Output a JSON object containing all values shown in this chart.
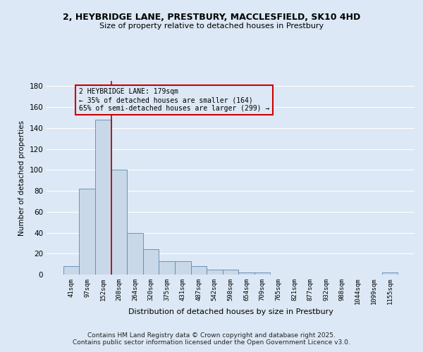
{
  "title": "2, HEYBRIDGE LANE, PRESTBURY, MACCLESFIELD, SK10 4HD",
  "subtitle": "Size of property relative to detached houses in Prestbury",
  "xlabel": "Distribution of detached houses by size in Prestbury",
  "ylabel": "Number of detached properties",
  "categories": [
    "41sqm",
    "97sqm",
    "152sqm",
    "208sqm",
    "264sqm",
    "320sqm",
    "375sqm",
    "431sqm",
    "487sqm",
    "542sqm",
    "598sqm",
    "654sqm",
    "709sqm",
    "765sqm",
    "821sqm",
    "877sqm",
    "932sqm",
    "988sqm",
    "1044sqm",
    "1099sqm",
    "1155sqm"
  ],
  "values": [
    8,
    82,
    148,
    100,
    40,
    24,
    13,
    13,
    8,
    5,
    5,
    2,
    2,
    0,
    0,
    0,
    0,
    0,
    0,
    0,
    2
  ],
  "bar_color": "#c8d8e8",
  "bar_edge_color": "#5a8ab0",
  "bg_color": "#dce8f5",
  "grid_color": "#ffffff",
  "property_line_x": 2.5,
  "annotation_line1": "2 HEYBRIDGE LANE: 179sqm",
  "annotation_line2": "← 35% of detached houses are smaller (164)",
  "annotation_line3": "65% of semi-detached houses are larger (299) →",
  "annotation_box_color": "#cc0000",
  "ylim": [
    0,
    185
  ],
  "yticks": [
    0,
    20,
    40,
    60,
    80,
    100,
    120,
    140,
    160,
    180
  ],
  "footer1": "Contains HM Land Registry data © Crown copyright and database right 2025.",
  "footer2": "Contains public sector information licensed under the Open Government Licence v3.0."
}
